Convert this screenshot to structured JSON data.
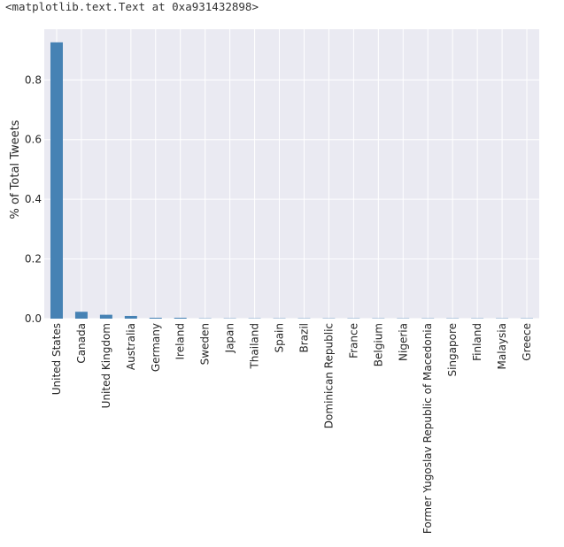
{
  "output_text": "<matplotlib.text.Text at 0xa931432898>",
  "colors": {
    "plot_background": "#EAEAF2",
    "grid": "#FFFFFF",
    "bar": "#4682B4",
    "text": "#262626"
  },
  "chart_data": {
    "type": "bar",
    "title": "",
    "xlabel": "",
    "ylabel": "% of Total Tweets",
    "ylim": [
      0,
      0.97
    ],
    "yticks": [
      0.0,
      0.2,
      0.4,
      0.6,
      0.8
    ],
    "ytick_labels": [
      "0.0",
      "0.2",
      "0.4",
      "0.6",
      "0.8"
    ],
    "grid": true,
    "legend": false,
    "categories": [
      "United States",
      "Canada",
      "United Kingdom",
      "Australia",
      "Germany",
      "Ireland",
      "Sweden",
      "Japan",
      "Thailand",
      "Spain",
      "Brazil",
      "Dominican Republic",
      "France",
      "Belgium",
      "Nigeria",
      "Former Yugoslav Republic of Macedonia",
      "Singapore",
      "Finland",
      "Malaysia",
      "Greece"
    ],
    "values": [
      0.926,
      0.023,
      0.013,
      0.009,
      0.003,
      0.003,
      0.001,
      0.001,
      0.001,
      0.001,
      0.001,
      0.001,
      0.001,
      0.001,
      0.001,
      0.001,
      0.001,
      0.001,
      0.001,
      0.001
    ]
  }
}
